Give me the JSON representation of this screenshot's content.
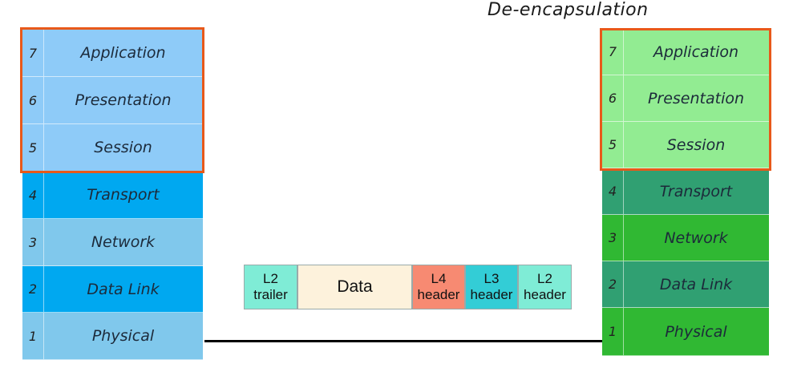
{
  "title": "De-encapsulation",
  "left_stack": {
    "layers": [
      {
        "num": "7",
        "name": "Application"
      },
      {
        "num": "6",
        "name": "Presentation"
      },
      {
        "num": "5",
        "name": "Session"
      },
      {
        "num": "4",
        "name": "Transport"
      },
      {
        "num": "3",
        "name": "Network"
      },
      {
        "num": "2",
        "name": "Data Link"
      },
      {
        "num": "1",
        "name": "Physical"
      }
    ],
    "colors": [
      "#8ecbf8",
      "#8ecbf8",
      "#8ecbf8",
      "#00a8f0",
      "#80c8ec",
      "#00a8f0",
      "#80c8ec"
    ]
  },
  "right_stack": {
    "layers": [
      {
        "num": "7",
        "name": "Application"
      },
      {
        "num": "6",
        "name": "Presentation"
      },
      {
        "num": "5",
        "name": "Session"
      },
      {
        "num": "4",
        "name": "Transport"
      },
      {
        "num": "3",
        "name": "Network"
      },
      {
        "num": "2",
        "name": "Data Link"
      },
      {
        "num": "1",
        "name": "Physical"
      }
    ],
    "colors": [
      "#92ec92",
      "#92ec92",
      "#92ec92",
      "#30a072",
      "#30b833",
      "#30a072",
      "#30b833"
    ]
  },
  "highlight_color": "#e8591a",
  "frame": {
    "cells": [
      {
        "line1": "L2",
        "line2": "trailer",
        "color": "#7fecd6"
      },
      {
        "line1": "Data",
        "line2": "",
        "color": "#fdf2dc"
      },
      {
        "line1": "L4",
        "line2": "header",
        "color": "#f78a72"
      },
      {
        "line1": "L3",
        "line2": "header",
        "color": "#33cdd6"
      },
      {
        "line1": "L2",
        "line2": "header",
        "color": "#7fecd6"
      }
    ]
  }
}
